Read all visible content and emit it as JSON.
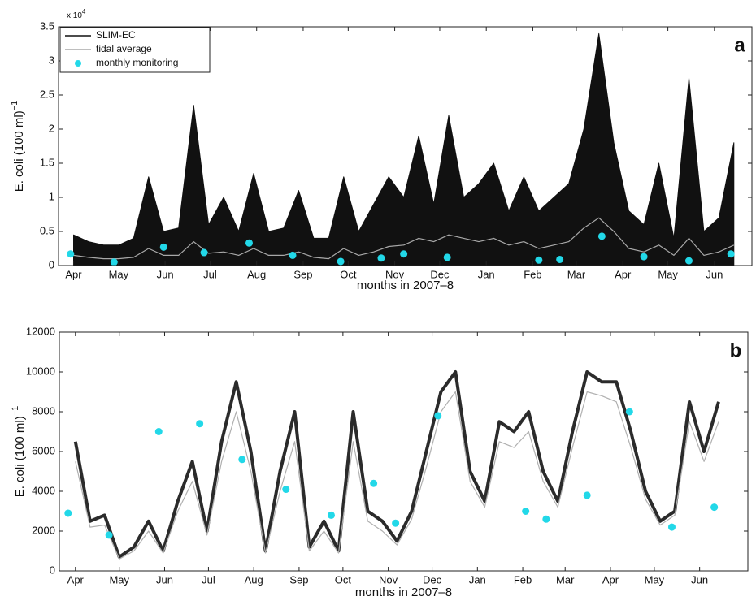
{
  "chart_data": [
    {
      "type": "line",
      "panel_label": "a",
      "xlabel": "months in 2007–8",
      "ylabel": "E. coli (100 ml)",
      "ylabel_exponent": "−1",
      "scale_label": "x 10",
      "scale_exponent": "4",
      "legend": "upper left",
      "xlim": [
        -10,
        452
      ],
      "ylim": [
        0,
        35000
      ],
      "xticks": [
        {
          "value": 0,
          "label": "Apr"
        },
        {
          "value": 30,
          "label": "May"
        },
        {
          "value": 61,
          "label": "Jun"
        },
        {
          "value": 91,
          "label": "Jul"
        },
        {
          "value": 122,
          "label": "Aug"
        },
        {
          "value": 153,
          "label": "Sep"
        },
        {
          "value": 183,
          "label": "Oct"
        },
        {
          "value": 214,
          "label": "Nov"
        },
        {
          "value": 244,
          "label": "Dec"
        },
        {
          "value": 275,
          "label": "Jan"
        },
        {
          "value": 306,
          "label": "Feb"
        },
        {
          "value": 335,
          "label": "Mar"
        },
        {
          "value": 366,
          "label": "Apr"
        },
        {
          "value": 396,
          "label": "May"
        },
        {
          "value": 427,
          "label": "Jun"
        }
      ],
      "yticks": [
        0,
        {
          "value": 5000,
          "label": "0.5"
        },
        {
          "value": 10000,
          "label": "1"
        },
        {
          "value": 15000,
          "label": "1.5"
        },
        {
          "value": 20000,
          "label": "2"
        },
        {
          "value": 25000,
          "label": "2.5"
        },
        {
          "value": 30000,
          "label": "3"
        },
        {
          "value": 35000,
          "label": "3.5"
        }
      ],
      "x": [
        0,
        10,
        20,
        30,
        40,
        50,
        60,
        70,
        80,
        90,
        100,
        110,
        120,
        130,
        140,
        150,
        160,
        170,
        180,
        190,
        200,
        210,
        220,
        230,
        240,
        250,
        260,
        270,
        280,
        290,
        300,
        310,
        320,
        330,
        340,
        350,
        360,
        370,
        380,
        390,
        400,
        410,
        420,
        430,
        440
      ],
      "series": [
        {
          "name": "SLIM-EC",
          "color": "#111111",
          "fill": true,
          "values": [
            4500,
            3500,
            3000,
            3000,
            4000,
            13000,
            5000,
            5500,
            23500,
            6000,
            10000,
            5000,
            13500,
            5000,
            5500,
            11000,
            4000,
            4000,
            13000,
            5000,
            9000,
            13000,
            10000,
            19000,
            9000,
            22000,
            10000,
            12000,
            15000,
            8000,
            13000,
            8000,
            10000,
            12000,
            20000,
            34000,
            18000,
            8000,
            6000,
            15000,
            4000,
            27500,
            5000,
            7000,
            18000
          ]
        },
        {
          "name": "tidal average",
          "color": "#a8a8a8",
          "values": [
            1500,
            1200,
            1000,
            1000,
            1200,
            2500,
            1500,
            1500,
            3500,
            1800,
            2000,
            1500,
            2500,
            1500,
            1500,
            2000,
            1200,
            1000,
            2500,
            1500,
            2000,
            2800,
            3000,
            4000,
            3500,
            4500,
            4000,
            3500,
            4000,
            3000,
            3500,
            2500,
            3000,
            3500,
            5500,
            7000,
            5000,
            2500,
            2000,
            3000,
            1500,
            4000,
            1500,
            2000,
            3000
          ]
        },
        {
          "name": "monthly monitoring",
          "color": "#22d8e8",
          "marker": true,
          "x": [
            -2,
            27,
            60,
            87,
            117,
            146,
            178,
            205,
            220,
            249,
            310,
            324,
            352,
            380,
            410,
            438
          ],
          "values": [
            1700,
            500,
            2700,
            1900,
            3300,
            1500,
            600,
            1100,
            1700,
            1200,
            800,
            900,
            4300,
            1300,
            700,
            1700
          ]
        }
      ]
    },
    {
      "type": "line",
      "panel_label": "b",
      "xlabel": "months in 2007–8",
      "ylabel": "E. coli (100 ml)",
      "ylabel_exponent": "−1",
      "xlim": [
        -11,
        460
      ],
      "ylim": [
        0,
        12000
      ],
      "xticks": [
        {
          "value": 0,
          "label": "Apr"
        },
        {
          "value": 30,
          "label": "May"
        },
        {
          "value": 61,
          "label": "Jun"
        },
        {
          "value": 91,
          "label": "Jul"
        },
        {
          "value": 122,
          "label": "Aug"
        },
        {
          "value": 153,
          "label": "Sep"
        },
        {
          "value": 183,
          "label": "Oct"
        },
        {
          "value": 214,
          "label": "Nov"
        },
        {
          "value": 244,
          "label": "Dec"
        },
        {
          "value": 275,
          "label": "Jan"
        },
        {
          "value": 306,
          "label": "Feb"
        },
        {
          "value": 335,
          "label": "Mar"
        },
        {
          "value": 366,
          "label": "Apr"
        },
        {
          "value": 396,
          "label": "May"
        },
        {
          "value": 427,
          "label": "Jun"
        }
      ],
      "yticks": [
        0,
        2000,
        4000,
        6000,
        8000,
        10000,
        12000
      ],
      "x": [
        0,
        10,
        20,
        30,
        40,
        50,
        60,
        70,
        80,
        90,
        100,
        110,
        120,
        130,
        140,
        150,
        160,
        170,
        180,
        190,
        200,
        210,
        220,
        230,
        240,
        250,
        260,
        270,
        280,
        290,
        300,
        310,
        320,
        330,
        340,
        350,
        360,
        370,
        380,
        390,
        400,
        410,
        420,
        430,
        440
      ],
      "series": [
        {
          "name": "SLIM-EC",
          "color": "#2b2b2b",
          "values": [
            6500,
            2500,
            2800,
            700,
            1200,
            2500,
            1000,
            3500,
            5500,
            2000,
            6500,
            9500,
            6000,
            1000,
            5000,
            8000,
            1200,
            2500,
            1000,
            8000,
            3000,
            2500,
            1500,
            3000,
            6000,
            9000,
            10000,
            5000,
            3500,
            7500,
            7000,
            8000,
            5000,
            3500,
            7000,
            10000,
            9500,
            9500,
            7000,
            4000,
            2500,
            3000,
            8500,
            6000,
            8500
          ]
        },
        {
          "name": "tidal average",
          "color": "#b0b0b0",
          "values": [
            5500,
            2200,
            2300,
            600,
            1000,
            2000,
            900,
            3000,
            4500,
            1800,
            5500,
            8000,
            5000,
            900,
            4000,
            6500,
            1000,
            2000,
            900,
            6500,
            2500,
            2000,
            1300,
            2600,
            5200,
            8000,
            9000,
            4500,
            3200,
            6500,
            6200,
            7000,
            4500,
            3200,
            6200,
            9000,
            8800,
            8500,
            6200,
            3600,
            2300,
            2800,
            7500,
            5500,
            7500
          ]
        },
        {
          "name": "monthly monitoring",
          "color": "#22d8e8",
          "marker": true,
          "x": [
            -5,
            23,
            57,
            85,
            114,
            144,
            175,
            204,
            219,
            248,
            308,
            322,
            350,
            379,
            408,
            437
          ],
          "values": [
            2900,
            1800,
            7000,
            7400,
            5600,
            4100,
            2800,
            4400,
            2400,
            7800,
            3000,
            2600,
            3800,
            8000,
            2200,
            3200
          ]
        }
      ]
    }
  ]
}
